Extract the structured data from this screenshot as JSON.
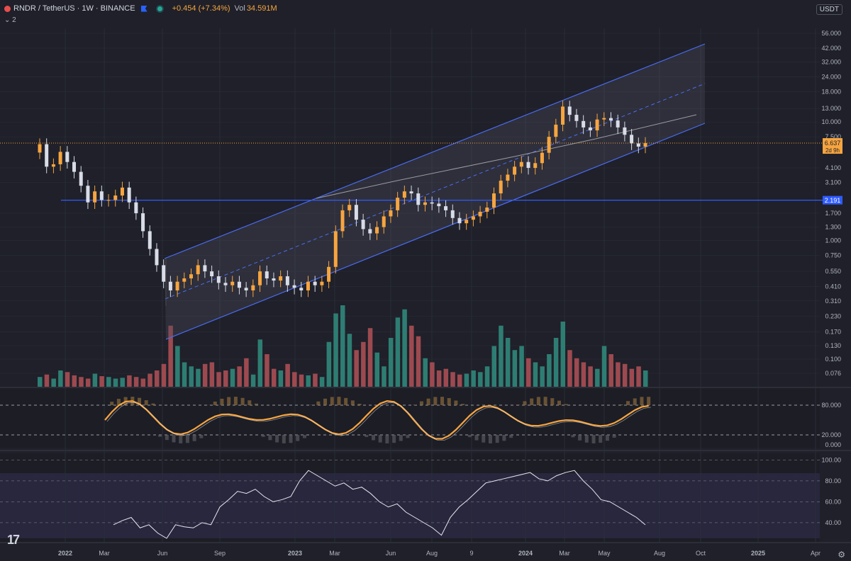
{
  "header": {
    "symbol": "RNDR / TetherUS · 1W · BINANCE",
    "change": "+0.454 (+7.34%)",
    "vol_label": "Vol",
    "vol_value": "34.591M",
    "indicator_count": "2",
    "currency": "USDT"
  },
  "colors": {
    "bg": "#1f2029",
    "up": "#f7a540",
    "down": "#d8dce6",
    "vol_up": "#2e7d73",
    "vol_down": "#9c4a50",
    "channel": "#4a6cf7",
    "grid": "#2a2d38"
  },
  "chart_data": {
    "type": "candlestick",
    "title": "RNDR / TetherUS · 1W · BINANCE",
    "y_scale": "log",
    "y_ticks": [
      "56.000",
      "42.000",
      "32.000",
      "24.000",
      "18.000",
      "13.000",
      "10.000",
      "7.500",
      "4.100",
      "3.100",
      "1.700",
      "1.300",
      "1.000",
      "0.750",
      "0.550",
      "0.410",
      "0.310",
      "0.230",
      "0.170",
      "0.130",
      "0.100",
      "0.076"
    ],
    "x_ticks": [
      "2022",
      "Mar",
      "Jun",
      "Sep",
      "2023",
      "Mar",
      "Jun",
      "Aug",
      "9",
      "2024",
      "Mar",
      "May",
      "Aug",
      "Oct",
      "2025",
      "Apr"
    ],
    "last_price": "6.637",
    "countdown": "2d 9h",
    "horizontal_level": "2.191",
    "weekly_close": [
      6.5,
      4.2,
      4.4,
      5.6,
      4.6,
      3.8,
      2.9,
      2.1,
      2.6,
      2.2,
      2.2,
      2.4,
      2.8,
      2.1,
      1.7,
      1.2,
      0.85,
      0.62,
      0.45,
      0.38,
      0.45,
      0.48,
      0.52,
      0.62,
      0.55,
      0.5,
      0.44,
      0.42,
      0.45,
      0.4,
      0.38,
      0.42,
      0.55,
      0.48,
      0.46,
      0.5,
      0.42,
      0.4,
      0.38,
      0.45,
      0.42,
      0.45,
      0.6,
      1.2,
      1.8,
      2.0,
      1.5,
      1.25,
      1.15,
      1.3,
      1.6,
      1.8,
      2.3,
      2.6,
      2.5,
      2.0,
      2.1,
      2.05,
      1.95,
      1.8,
      1.55,
      1.4,
      1.5,
      1.6,
      1.75,
      1.9,
      2.5,
      3.2,
      3.6,
      4.2,
      4.6,
      4.1,
      4.5,
      5.5,
      7.5,
      9.5,
      13.5,
      11.5,
      10.2,
      9.0,
      8.5,
      10.5,
      10.8,
      10.3,
      9.0,
      7.8,
      6.6,
      6.2,
      6.637
    ],
    "macd_hist_note": "oscillator pane with levels 80.000 / 20.000 / 0.000",
    "rsi": {
      "levels": [
        "100.00",
        "80.00",
        "60.00",
        "40.00"
      ]
    }
  }
}
